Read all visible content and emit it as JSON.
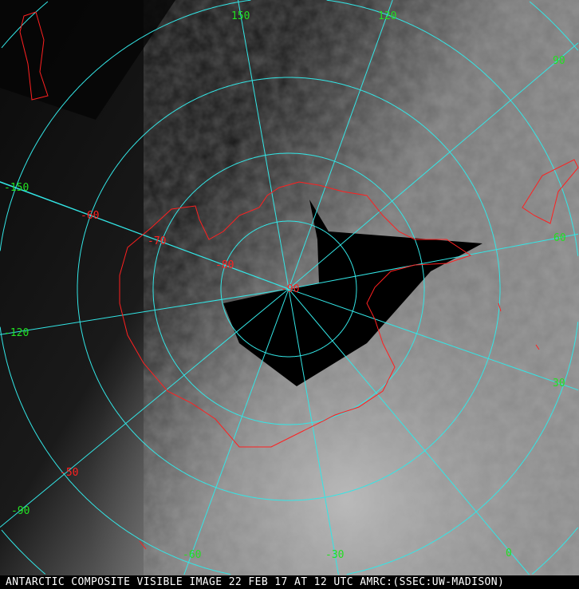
{
  "caption": "ANTARCTIC COMPOSITE VISIBLE IMAGE 22 FEB 17 AT 12 UTC AMRC:(SSEC:UW-MADISON)",
  "longitude_labels": [
    "150",
    "120",
    "90",
    "-150",
    "60",
    "-120",
    "30",
    "-90",
    "-60",
    "-30",
    "0"
  ],
  "latitude_labels": [
    "-60",
    "-70",
    "-80",
    "-90",
    "-50"
  ],
  "colors": {
    "grid": "#33e6e6",
    "coastline": "#ff2020",
    "longitude_label": "#22e022",
    "latitude_label": "#ff2020"
  }
}
